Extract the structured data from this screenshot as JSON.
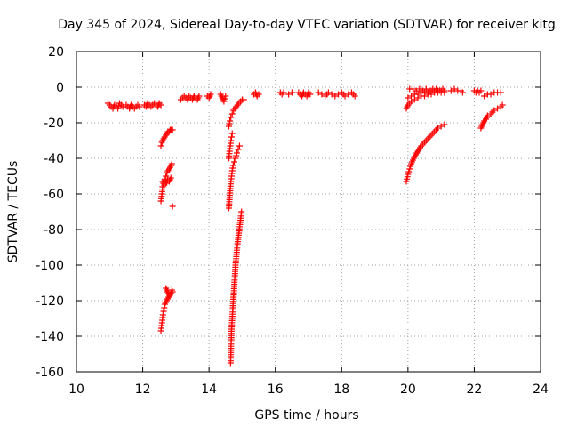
{
  "chart_data": {
    "type": "scatter",
    "title": "Day 345 of 2024, Sidereal Day-to-day VTEC variation (SDTVAR) for receiver kitg",
    "xlabel": "GPS time / hours",
    "ylabel": "SDTVAR / TECUs",
    "xlim": [
      10,
      24
    ],
    "ylim": [
      -160,
      20
    ],
    "xticks": [
      10,
      12,
      14,
      16,
      18,
      20,
      22,
      24
    ],
    "yticks": [
      -160,
      -140,
      -120,
      -100,
      -80,
      -60,
      -40,
      -20,
      0,
      20
    ],
    "grid": true,
    "marker": "+",
    "color": "#ff0000",
    "segments": [
      {
        "x": [
          10.95,
          11.0,
          11.05,
          11.1,
          11.15,
          11.2,
          11.25,
          11.3,
          11.35,
          11.4
        ],
        "y": [
          -9,
          -10,
          -11,
          -12,
          -10,
          -11,
          -12,
          -9,
          -10,
          -11
        ]
      },
      {
        "x": [
          11.5,
          11.55,
          11.6,
          11.65,
          11.7,
          11.75,
          11.8,
          11.85,
          11.9
        ],
        "y": [
          -10,
          -11,
          -12,
          -10,
          -11,
          -12,
          -11,
          -10,
          -11
        ]
      },
      {
        "x": [
          12.05,
          12.1,
          12.15,
          12.2,
          12.25,
          12.3,
          12.35,
          12.4,
          12.45,
          12.5,
          12.55
        ],
        "y": [
          -10,
          -11,
          -9,
          -10,
          -11,
          -10,
          -9,
          -10,
          -11,
          -9,
          -10
        ]
      },
      {
        "x": [
          12.55,
          12.58,
          12.6,
          12.63,
          12.66,
          12.7,
          12.73,
          12.76,
          12.8,
          12.83,
          12.86,
          12.9
        ],
        "y": [
          -33,
          -31,
          -30,
          -29,
          -28,
          -27,
          -26,
          -25,
          -25,
          -24,
          -24,
          -24
        ]
      },
      {
        "x": [
          12.55,
          12.58,
          12.6,
          12.63,
          12.66,
          12.7,
          12.73,
          12.76,
          12.8,
          12.83,
          12.86,
          12.88
        ],
        "y": [
          -64,
          -60,
          -56,
          -54,
          -52,
          -50,
          -48,
          -47,
          -46,
          -45,
          -44,
          -43
        ]
      },
      {
        "x": [
          12.6,
          12.65,
          12.7,
          12.75,
          12.8,
          12.85
        ],
        "y": [
          -53,
          -55,
          -54,
          -52,
          -53,
          -51
        ]
      },
      {
        "x": [
          12.9
        ],
        "y": [
          -67
        ]
      },
      {
        "x": [
          12.55,
          12.57,
          12.59,
          12.61,
          12.63,
          12.65,
          12.67,
          12.69,
          12.72,
          12.75,
          12.78,
          12.82,
          12.86,
          12.9
        ],
        "y": [
          -137,
          -134,
          -131,
          -128,
          -126,
          -124,
          -122,
          -121,
          -120,
          -119,
          -118,
          -117,
          -116,
          -115
        ]
      },
      {
        "x": [
          12.7,
          12.75,
          12.8,
          12.85,
          12.88
        ],
        "y": [
          -113,
          -115,
          -117,
          -116,
          -114
        ]
      },
      {
        "x": [
          13.15,
          13.2,
          13.25,
          13.3,
          13.35,
          13.4,
          13.45,
          13.5,
          13.55,
          13.6,
          13.65,
          13.7
        ],
        "y": [
          -7,
          -6,
          -5,
          -6,
          -7,
          -5,
          -6,
          -7,
          -5,
          -6,
          -7,
          -5
        ]
      },
      {
        "x": [
          13.95,
          14.0,
          14.05
        ],
        "y": [
          -5,
          -6,
          -4
        ]
      },
      {
        "x": [
          14.35,
          14.4,
          14.45,
          14.5
        ],
        "y": [
          -4,
          -6,
          -8,
          -5
        ]
      },
      {
        "x": [
          14.6,
          14.63,
          14.66,
          14.7,
          14.74,
          14.78,
          14.82,
          14.86,
          14.9,
          14.95,
          15.0,
          15.05
        ],
        "y": [
          -22,
          -19,
          -17,
          -15,
          -13,
          -12,
          -11,
          -10,
          -9,
          -8,
          -7,
          -7
        ]
      },
      {
        "x": [
          14.6,
          14.62,
          14.64,
          14.66,
          14.68,
          14.7,
          14.73,
          14.76,
          14.8,
          14.84,
          14.88,
          14.92
        ],
        "y": [
          -68,
          -62,
          -57,
          -53,
          -50,
          -47,
          -44,
          -42,
          -40,
          -37,
          -35,
          -33
        ]
      },
      {
        "x": [
          14.6,
          14.62,
          14.64,
          14.66,
          14.68,
          14.7
        ],
        "y": [
          -40,
          -36,
          -33,
          -30,
          -28,
          -26
        ]
      },
      {
        "x": [
          14.65,
          14.66,
          14.67,
          14.68,
          14.7,
          14.72,
          14.74,
          14.76,
          14.78,
          14.8,
          14.83,
          14.86,
          14.9,
          14.94,
          14.98
        ],
        "y": [
          -155,
          -148,
          -142,
          -136,
          -130,
          -124,
          -118,
          -112,
          -106,
          -100,
          -94,
          -88,
          -82,
          -76,
          -70
        ]
      },
      {
        "x": [
          15.35,
          15.4,
          15.45,
          15.5
        ],
        "y": [
          -4,
          -3,
          -5,
          -4
        ]
      },
      {
        "x": [
          16.15,
          16.2,
          16.25
        ],
        "y": [
          -3,
          -4,
          -3
        ]
      },
      {
        "x": [
          16.4,
          16.5
        ],
        "y": [
          -4,
          -3
        ]
      },
      {
        "x": [
          16.7,
          16.75,
          16.8,
          16.85,
          16.9,
          16.95,
          17.0,
          17.05
        ],
        "y": [
          -3,
          -4,
          -5,
          -3,
          -4,
          -5,
          -3,
          -4
        ]
      },
      {
        "x": [
          17.3,
          17.4,
          17.5,
          17.6,
          17.7,
          17.8,
          17.9,
          18.0,
          18.1,
          18.2,
          18.3,
          18.4
        ],
        "y": [
          -3,
          -4,
          -5,
          -3,
          -4,
          -5,
          -4,
          -3,
          -5,
          -4,
          -3,
          -5
        ]
      },
      {
        "x": [
          19.95,
          20.0,
          20.05,
          20.1,
          20.15,
          20.2,
          20.3,
          20.4,
          20.5,
          20.6,
          20.7,
          20.8,
          20.9,
          21.0,
          21.1
        ],
        "y": [
          -53,
          -49,
          -46,
          -43,
          -41,
          -39,
          -36,
          -33,
          -31,
          -29,
          -27,
          -25,
          -23,
          -22,
          -21
        ]
      },
      {
        "x": [
          19.95,
          20.0,
          20.1,
          20.2,
          20.3,
          20.4,
          20.5,
          20.6,
          20.7,
          20.8,
          20.9,
          21.0,
          21.1
        ],
        "y": [
          -12,
          -10,
          -8,
          -7,
          -6,
          -5,
          -5,
          -4,
          -4,
          -3,
          -3,
          -3,
          -3
        ]
      },
      {
        "x": [
          20.0,
          20.1,
          20.2,
          20.3,
          20.4,
          20.5,
          20.6,
          20.7,
          20.8,
          20.9,
          21.0,
          21.1
        ],
        "y": [
          -6,
          -5,
          -4,
          -4,
          -3,
          -3,
          -3,
          -2,
          -2,
          -2,
          -2,
          -2
        ]
      },
      {
        "x": [
          20.05,
          20.15,
          20.25,
          20.35,
          20.45,
          20.55,
          20.65,
          20.75,
          20.85,
          20.95,
          21.05
        ],
        "y": [
          -1,
          -1,
          -2,
          -1,
          -2,
          -1,
          -2,
          -1,
          -1,
          -2,
          -1
        ]
      },
      {
        "x": [
          21.3,
          21.4,
          21.5
        ],
        "y": [
          -2,
          -1,
          -2
        ]
      },
      {
        "x": [
          21.6,
          21.65
        ],
        "y": [
          -2,
          -3
        ]
      },
      {
        "x": [
          22.0,
          22.05,
          22.1,
          22.15,
          22.2
        ],
        "y": [
          -2,
          -3,
          -2,
          -3,
          -2
        ]
      },
      {
        "x": [
          22.3,
          22.4,
          22.5,
          22.6,
          22.7,
          22.8
        ],
        "y": [
          -5,
          -4,
          -4,
          -3,
          -3,
          -3
        ]
      },
      {
        "x": [
          22.2,
          22.25,
          22.3,
          22.35,
          22.4,
          22.5,
          22.6,
          22.7,
          22.8,
          22.85
        ],
        "y": [
          -23,
          -21,
          -19,
          -18,
          -16,
          -15,
          -13,
          -12,
          -11,
          -10
        ]
      }
    ]
  }
}
